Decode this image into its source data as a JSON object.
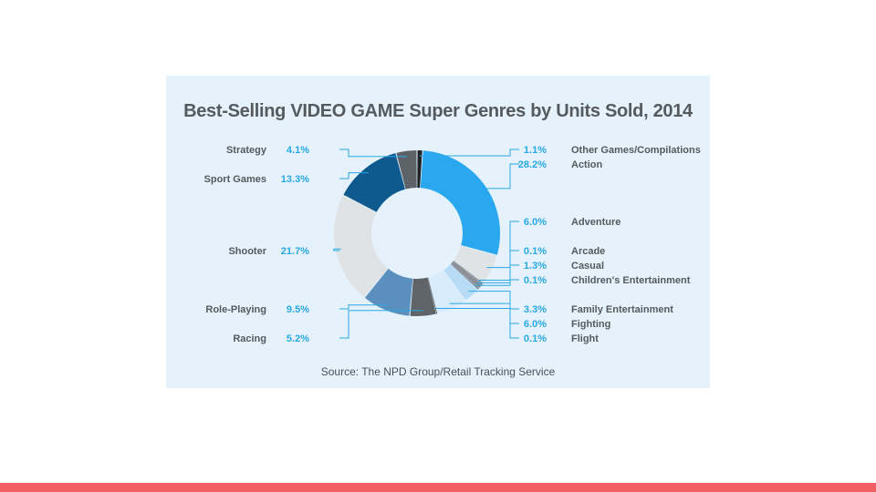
{
  "colors": {
    "background": "#ffffff",
    "panel": "#e5f2fb",
    "value_text": "#29a8e6",
    "label_text": "#555a5e",
    "leader_line": "#29a8e6",
    "bottom_bar": "#f26066"
  },
  "chart_data": {
    "type": "pie",
    "variant": "donut",
    "title": "Best-Selling VIDEO GAME Super Genres by Units Sold, 2014",
    "source": "Source: The NPD Group/Retail Tracking Service",
    "slices": [
      {
        "label": "Other Games/Compilations",
        "value": 1.1,
        "display": "1.1%",
        "color": "#1e2226",
        "side": "right"
      },
      {
        "label": "Action",
        "value": 28.2,
        "display": "28.2%",
        "color": "#29a8ef",
        "side": "right"
      },
      {
        "label": "Adventure",
        "value": 6.0,
        "display": "6.0%",
        "color": "#dfe3e6",
        "side": "right"
      },
      {
        "label": "Arcade",
        "value": 0.1,
        "display": "0.1%",
        "color": "#444a50",
        "side": "right"
      },
      {
        "label": "Casual",
        "value": 1.3,
        "display": "1.3%",
        "color": "#8a9096",
        "side": "right"
      },
      {
        "label": "Children's Entertainment",
        "value": 0.1,
        "display": "0.1%",
        "color": "#1e2226",
        "side": "right"
      },
      {
        "label": "Family Entertainment",
        "value": 3.3,
        "display": "3.3%",
        "color": "#b9dcf6",
        "side": "right"
      },
      {
        "label": "Fighting",
        "value": 6.0,
        "display": "6.0%",
        "color": "#d8ebfb",
        "side": "right"
      },
      {
        "label": "Flight",
        "value": 0.1,
        "display": "0.1%",
        "color": "#1e2226",
        "side": "right"
      },
      {
        "label": "Racing",
        "value": 5.2,
        "display": "5.2%",
        "color": "#5e6468",
        "side": "left"
      },
      {
        "label": "Role-Playing",
        "value": 9.5,
        "display": "9.5%",
        "color": "#5b8fbe",
        "side": "left"
      },
      {
        "label": "Shooter",
        "value": 21.7,
        "display": "21.7%",
        "color": "#dfe3e6",
        "side": "left"
      },
      {
        "label": "Sport Games",
        "value": 13.3,
        "display": "13.3%",
        "color": "#0e5a8f",
        "side": "left"
      },
      {
        "label": "Strategy",
        "value": 4.1,
        "display": "4.1%",
        "color": "#5d6368",
        "side": "left"
      }
    ],
    "legend": "leader-line labels on both sides"
  }
}
